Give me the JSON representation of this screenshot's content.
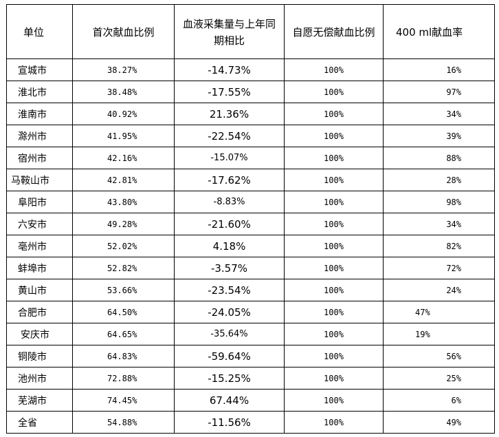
{
  "headers": {
    "unit": "单位",
    "first_time": "首次献血比例",
    "volume_change_line1": "血液采集量与上年同",
    "volume_change_line2": "期相比",
    "voluntary": "自愿无偿献血比例",
    "rate_400ml": "400 ml献血率"
  },
  "rows": [
    {
      "unit": "宣城市",
      "first_time": "38.27%",
      "change": "-14.73%",
      "voluntary": "100%",
      "rate_400ml": "16%"
    },
    {
      "unit": "淮北市",
      "first_time": "38.48%",
      "change": "-17.55%",
      "voluntary": "100%",
      "rate_400ml": "97%"
    },
    {
      "unit": "淮南市",
      "first_time": "40.92%",
      "change": "21.36%",
      "voluntary": "100%",
      "rate_400ml": "34%"
    },
    {
      "unit": "滁州市",
      "first_time": "41.95%",
      "change": "-22.54%",
      "voluntary": "100%",
      "rate_400ml": "39%"
    },
    {
      "unit": "宿州市",
      "first_time": "42.16%",
      "change": "-15.07%",
      "voluntary": "100%",
      "rate_400ml": "88%"
    },
    {
      "unit": "马鞍山市",
      "first_time": "42.81%",
      "change": "-17.62%",
      "voluntary": "100%",
      "rate_400ml": "28%"
    },
    {
      "unit": "阜阳市",
      "first_time": "43.80%",
      "change": "-8.83%",
      "voluntary": "100%",
      "rate_400ml": "98%"
    },
    {
      "unit": "六安市",
      "first_time": "49.28%",
      "change": "-21.60%",
      "voluntary": "100%",
      "rate_400ml": "34%"
    },
    {
      "unit": "亳州市",
      "first_time": "52.02%",
      "change": "4.18%",
      "voluntary": "100%",
      "rate_400ml": "82%"
    },
    {
      "unit": "蚌埠市",
      "first_time": "52.82%",
      "change": "-3.57%",
      "voluntary": "100%",
      "rate_400ml": "72%"
    },
    {
      "unit": "黄山市",
      "first_time": "53.66%",
      "change": "-23.54%",
      "voluntary": "100%",
      "rate_400ml": "24%"
    },
    {
      "unit": "合肥市",
      "first_time": "64.50%",
      "change": "-24.05%",
      "voluntary": "100%",
      "rate_400ml": "47%"
    },
    {
      "unit": "安庆市",
      "first_time": "64.65%",
      "change": "-35.64%",
      "voluntary": "100%",
      "rate_400ml": "19%"
    },
    {
      "unit": "铜陵市",
      "first_time": "64.83%",
      "change": "-59.64%",
      "voluntary": "100%",
      "rate_400ml": "56%"
    },
    {
      "unit": "池州市",
      "first_time": "72.88%",
      "change": "-15.25%",
      "voluntary": "100%",
      "rate_400ml": "25%"
    },
    {
      "unit": "芜湖市",
      "first_time": "74.45%",
      "change": "67.44%",
      "voluntary": "100%",
      "rate_400ml": "6%"
    },
    {
      "unit": "全省",
      "first_time": "54.88%",
      "change": "-11.56%",
      "voluntary": "100%",
      "rate_400ml": "49%"
    }
  ]
}
